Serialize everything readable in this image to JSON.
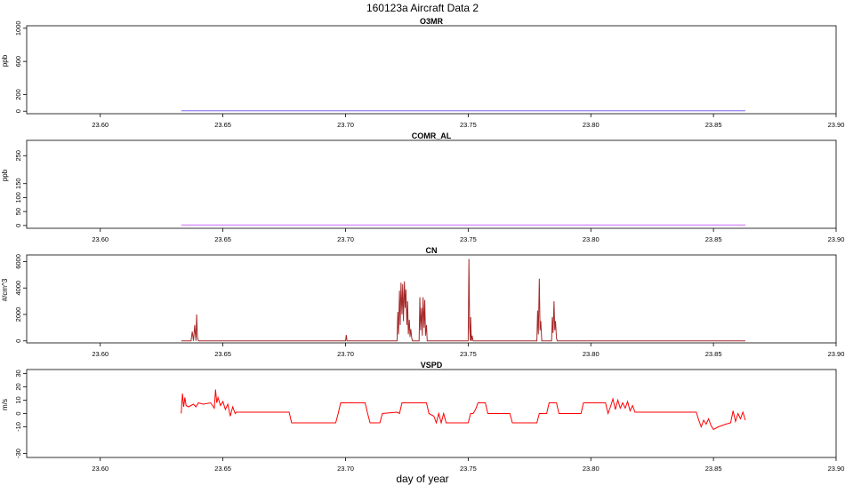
{
  "figure": {
    "title": "160123a   Aircraft Data 2",
    "xlabel": "day of year"
  },
  "chart_data": [
    {
      "type": "line",
      "title": "O3MR",
      "ylabel": "ppb",
      "xlim": [
        23.57,
        23.9
      ],
      "ylim": [
        -30,
        1030
      ],
      "xticks": [
        23.6,
        23.65,
        23.7,
        23.75,
        23.8,
        23.85,
        23.9
      ],
      "xtick_labels": [
        "23.60",
        "23.65",
        "23.70",
        "23.75",
        "23.80",
        "23.85",
        "23.90"
      ],
      "yticks": [
        0,
        200,
        600,
        1000
      ],
      "ytick_labels": [
        "0",
        "200",
        "600",
        "1000"
      ],
      "series": [
        {
          "color": "#7b68ee",
          "x": [
            23.633,
            23.863
          ],
          "y": [
            5,
            5
          ]
        }
      ]
    },
    {
      "type": "line",
      "title": "COMR_AL",
      "ylabel": "ppb",
      "xlim": [
        23.57,
        23.9
      ],
      "ylim": [
        -10,
        305
      ],
      "xticks": [
        23.6,
        23.65,
        23.7,
        23.75,
        23.8,
        23.85,
        23.9
      ],
      "xtick_labels": [
        "23.60",
        "23.65",
        "23.70",
        "23.75",
        "23.80",
        "23.85",
        "23.90"
      ],
      "yticks": [
        0,
        50,
        100,
        150,
        250
      ],
      "ytick_labels": [
        "0",
        "50",
        "100",
        "150",
        "250"
      ],
      "series": [
        {
          "color": "#cc66ff",
          "x": [
            23.633,
            23.863
          ],
          "y": [
            2,
            2
          ]
        }
      ]
    },
    {
      "type": "line",
      "title": "CN",
      "ylabel": "#/cm^3",
      "xlim": [
        23.57,
        23.9
      ],
      "ylim": [
        -150,
        6500
      ],
      "xticks": [
        23.6,
        23.65,
        23.7,
        23.75,
        23.8,
        23.85,
        23.9
      ],
      "xtick_labels": [
        "23.60",
        "23.65",
        "23.70",
        "23.75",
        "23.80",
        "23.85",
        "23.90"
      ],
      "yticks": [
        0,
        2000,
        4000,
        6000
      ],
      "ytick_labels": [
        "0",
        "2000",
        "4000",
        "6000"
      ],
      "series": [
        {
          "color": "#a52a2a",
          "x": [
            23.633,
            23.637,
            23.6375,
            23.638,
            23.6385,
            23.639,
            23.6393,
            23.6396,
            23.64,
            23.7,
            23.7003,
            23.7006,
            23.721,
            23.7213,
            23.7216,
            23.722,
            23.7223,
            23.7226,
            23.723,
            23.7233,
            23.7236,
            23.724,
            23.7243,
            23.7246,
            23.725,
            23.7253,
            23.7256,
            23.726,
            23.7263,
            23.7266,
            23.727,
            23.7273,
            23.728,
            23.73,
            23.7303,
            23.7306,
            23.731,
            23.7313,
            23.7316,
            23.732,
            23.7323,
            23.7326,
            23.733,
            23.7333,
            23.75,
            23.7503,
            23.7506,
            23.7509,
            23.751,
            23.7513,
            23.7516,
            23.752,
            23.778,
            23.7783,
            23.7786,
            23.779,
            23.7793,
            23.7796,
            23.78,
            23.7803,
            23.784,
            23.7843,
            23.7846,
            23.785,
            23.7853,
            23.7856,
            23.786,
            23.7863,
            23.863
          ],
          "y": [
            0,
            0,
            700,
            0,
            1200,
            0,
            2000,
            300,
            0,
            0,
            450,
            0,
            0,
            2200,
            500,
            3800,
            1200,
            4400,
            2000,
            4300,
            1500,
            4500,
            2500,
            3900,
            1200,
            3000,
            500,
            1600,
            300,
            900,
            200,
            0,
            0,
            0,
            3300,
            800,
            2500,
            400,
            3300,
            1000,
            3100,
            400,
            1200,
            0,
            0,
            6200,
            1000,
            0,
            1800,
            0,
            400,
            0,
            0,
            2300,
            500,
            4700,
            800,
            1500,
            0,
            0,
            0,
            1800,
            600,
            3000,
            800,
            1500,
            200,
            0,
            0
          ]
        }
      ]
    },
    {
      "type": "line",
      "title": "VSPD",
      "ylabel": "m/s",
      "xlim": [
        23.57,
        23.9
      ],
      "ylim": [
        -33,
        33
      ],
      "xticks": [
        23.6,
        23.65,
        23.7,
        23.75,
        23.8,
        23.85,
        23.9
      ],
      "xtick_labels": [
        "23.60",
        "23.65",
        "23.70",
        "23.75",
        "23.80",
        "23.85",
        "23.90"
      ],
      "yticks": [
        -30,
        -10,
        0,
        10,
        20,
        30
      ],
      "ytick_labels": [
        "-30",
        "-10",
        "0",
        "10",
        "20",
        "30"
      ],
      "series": [
        {
          "color": "#ff0000",
          "x": [
            23.633,
            23.6335,
            23.634,
            23.6345,
            23.635,
            23.636,
            23.637,
            23.638,
            23.639,
            23.64,
            23.642,
            23.645,
            23.6465,
            23.647,
            23.6475,
            23.648,
            23.649,
            23.65,
            23.651,
            23.652,
            23.653,
            23.654,
            23.655,
            23.6555,
            23.677,
            23.678,
            23.696,
            23.697,
            23.698,
            23.7,
            23.708,
            23.709,
            23.71,
            23.714,
            23.715,
            23.721,
            23.722,
            23.723,
            23.733,
            23.734,
            23.736,
            23.737,
            23.738,
            23.739,
            23.74,
            23.741,
            23.742,
            23.75,
            23.751,
            23.752,
            23.753,
            23.754,
            23.757,
            23.758,
            23.767,
            23.768,
            23.769,
            23.778,
            23.779,
            23.782,
            23.783,
            23.786,
            23.787,
            23.796,
            23.797,
            23.806,
            23.807,
            23.808,
            23.809,
            23.81,
            23.811,
            23.812,
            23.813,
            23.814,
            23.815,
            23.816,
            23.817,
            23.818,
            23.843,
            23.844,
            23.845,
            23.846,
            23.847,
            23.848,
            23.849,
            23.85,
            23.852,
            23.855,
            23.857,
            23.858,
            23.859,
            23.86,
            23.861,
            23.862,
            23.863
          ],
          "y": [
            0,
            15,
            5,
            12,
            6,
            5,
            6,
            7,
            5,
            8,
            7,
            8,
            4,
            18,
            8,
            12,
            6,
            9,
            3,
            7,
            -2,
            5,
            0,
            1,
            1,
            -7,
            -7,
            0,
            8,
            8,
            8,
            0,
            -7,
            -7,
            0,
            1,
            0,
            8,
            8,
            0,
            -2,
            -7,
            0,
            -7,
            0,
            -7,
            -7,
            -7,
            0,
            0,
            3,
            8,
            8,
            0,
            0,
            -7,
            -7,
            -7,
            0,
            0,
            8,
            8,
            0,
            0,
            8,
            8,
            0,
            5,
            11,
            3,
            10,
            4,
            8,
            4,
            9,
            2,
            6,
            1,
            1,
            -5,
            -10,
            -5,
            -8,
            -4,
            -9,
            -12,
            -10,
            -8,
            -7,
            2,
            -6,
            0,
            -4,
            1,
            -5
          ]
        }
      ]
    }
  ]
}
